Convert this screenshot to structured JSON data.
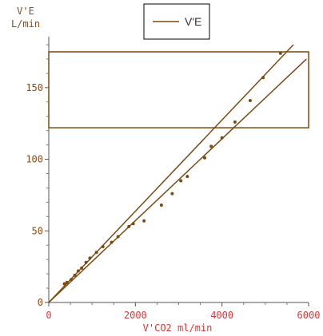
{
  "colors": {
    "series": "#7a4a12",
    "axis_y": "#8b4a1a",
    "axis_x": "#d63a3a",
    "frame": "#7a4a12"
  },
  "chart_data": {
    "type": "scatter",
    "ylabel_line1": "V'E",
    "ylabel_line2": "L/min",
    "xlabel": "V'CO2  ml/min",
    "xlim": [
      0,
      6000
    ],
    "ylim": [
      0,
      180
    ],
    "xticks": [
      0,
      2000,
      4000,
      6000
    ],
    "yticks": [
      0,
      50,
      100,
      150
    ],
    "legend": {
      "entries": [
        "V'E"
      ],
      "placement": "top-center"
    },
    "highlight_box": {
      "x_range": [
        0,
        6000
      ],
      "y_range": [
        122,
        175
      ]
    },
    "series": [
      {
        "name": "V'E",
        "points": [
          [
            360,
            13
          ],
          [
            420,
            14
          ],
          [
            520,
            16
          ],
          [
            600,
            19
          ],
          [
            680,
            22
          ],
          [
            760,
            24
          ],
          [
            860,
            28
          ],
          [
            950,
            31
          ],
          [
            1100,
            35
          ],
          [
            1250,
            39
          ],
          [
            1450,
            42
          ],
          [
            1600,
            46
          ],
          [
            1850,
            53
          ],
          [
            1950,
            55
          ],
          [
            2200,
            57
          ],
          [
            2600,
            68
          ],
          [
            2850,
            76
          ],
          [
            3050,
            85
          ],
          [
            3200,
            88
          ],
          [
            3600,
            101
          ],
          [
            3750,
            109
          ],
          [
            4000,
            115
          ],
          [
            4300,
            126
          ],
          [
            4650,
            141
          ],
          [
            4950,
            157
          ],
          [
            5350,
            174
          ]
        ]
      }
    ],
    "lines": [
      {
        "from": [
          0,
          0
        ],
        "to": [
          5650,
          180
        ]
      },
      {
        "from": [
          0,
          0
        ],
        "to": [
          5950,
          170
        ]
      }
    ]
  }
}
